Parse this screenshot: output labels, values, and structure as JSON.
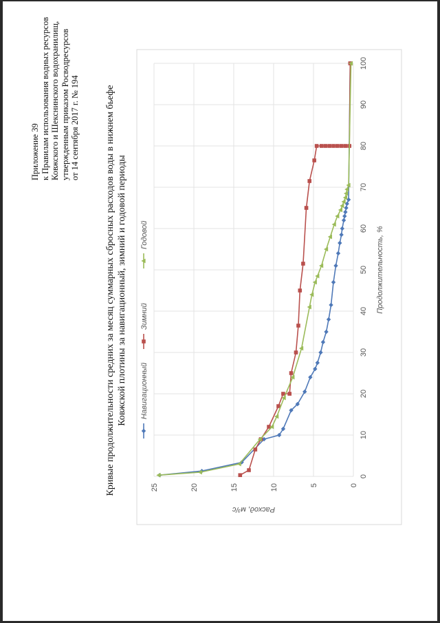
{
  "appendix": {
    "lines": [
      "Приложение 39",
      "к Правилам использования водных ресурсов",
      "Ковжского и Шекснинского водохранилищ,",
      "утвержденным приказом Росводресурсов",
      "от 14 сентября 2017 г. № 194"
    ]
  },
  "title_lines": [
    "Кривые продолжительности средних за месяц суммарных сбросных расходов воды в нижнем бьефе",
    "Ковжской плотины за навигационный, зимний и годовой периоды"
  ],
  "chart_data": {
    "type": "line",
    "title": "Кривые продолжительности средних за месяц суммарных сбросных расходов воды в нижнем бьефе Ковжской плотины за навигационный, зимний и годовой периоды",
    "xlabel": "Продолжительность, %",
    "ylabel": "Расход, м³/с",
    "xlim": [
      0,
      100
    ],
    "ylim": [
      0,
      25
    ],
    "xticks": [
      0,
      10,
      20,
      30,
      40,
      50,
      60,
      70,
      80,
      90,
      100
    ],
    "yticks": [
      0,
      5,
      10,
      15,
      20,
      25
    ],
    "grid": true,
    "legend_position": "top",
    "series": [
      {
        "name": "Навигационный",
        "color": "#4f79b8",
        "marker": "diamond",
        "x": [
          0.3,
          1.3,
          3.4,
          9.0,
          10.0,
          11.5,
          16.0,
          17.5,
          20.5,
          24.0,
          26.0,
          27.5,
          30.0,
          32.5,
          35.0,
          38.0,
          41.5,
          47.0,
          51.0,
          54.0,
          56.5,
          58.5,
          60.0,
          62.0,
          63.0,
          64.0,
          65.0,
          66.0,
          67.0,
          100.0
        ],
        "y": [
          24.3,
          19.0,
          14.0,
          11.2,
          9.3,
          8.8,
          7.8,
          7.0,
          6.1,
          5.4,
          4.8,
          4.5,
          4.1,
          3.8,
          3.4,
          3.1,
          2.8,
          2.5,
          2.2,
          1.9,
          1.7,
          1.5,
          1.4,
          1.2,
          1.1,
          1.0,
          0.9,
          0.8,
          0.6,
          0.4
        ]
      },
      {
        "name": "Зимний",
        "color": "#b9504d",
        "marker": "square",
        "x": [
          0.3,
          1.5,
          6.5,
          9.0,
          12.0,
          17.0,
          20.0,
          20.0,
          25.0,
          30.0,
          36.5,
          45.0,
          51.5,
          65.0,
          71.5,
          76.5,
          80.0,
          80.0,
          80.0,
          80.0,
          80.0,
          80.0,
          80.0,
          80.0,
          80.0,
          100.0
        ],
        "y": [
          14.2,
          13.1,
          12.3,
          11.6,
          10.6,
          9.4,
          8.8,
          8.0,
          7.8,
          7.2,
          6.9,
          6.7,
          6.3,
          5.9,
          5.5,
          4.9,
          4.6,
          4.0,
          3.5,
          3.0,
          2.5,
          2.0,
          1.5,
          1.0,
          0.5,
          0.4
        ]
      },
      {
        "name": "Годовой",
        "color": "#9bbb59",
        "marker": "triangle",
        "x": [
          0.3,
          1.0,
          3.0,
          9.0,
          12.0,
          14.5,
          19.0,
          24.0,
          31.0,
          41.0,
          44.0,
          47.0,
          48.5,
          51.0,
          55.0,
          58.0,
          61.0,
          63.0,
          64.5,
          65.5,
          66.5,
          67.5,
          68.5,
          69.5,
          70.5,
          100.0
        ],
        "y": [
          24.4,
          19.2,
          14.3,
          11.7,
          10.2,
          9.6,
          8.7,
          7.6,
          6.5,
          5.5,
          5.2,
          4.8,
          4.5,
          4.0,
          3.4,
          2.9,
          2.4,
          2.0,
          1.6,
          1.4,
          1.2,
          1.0,
          0.9,
          0.8,
          0.6,
          0.3
        ]
      }
    ]
  }
}
